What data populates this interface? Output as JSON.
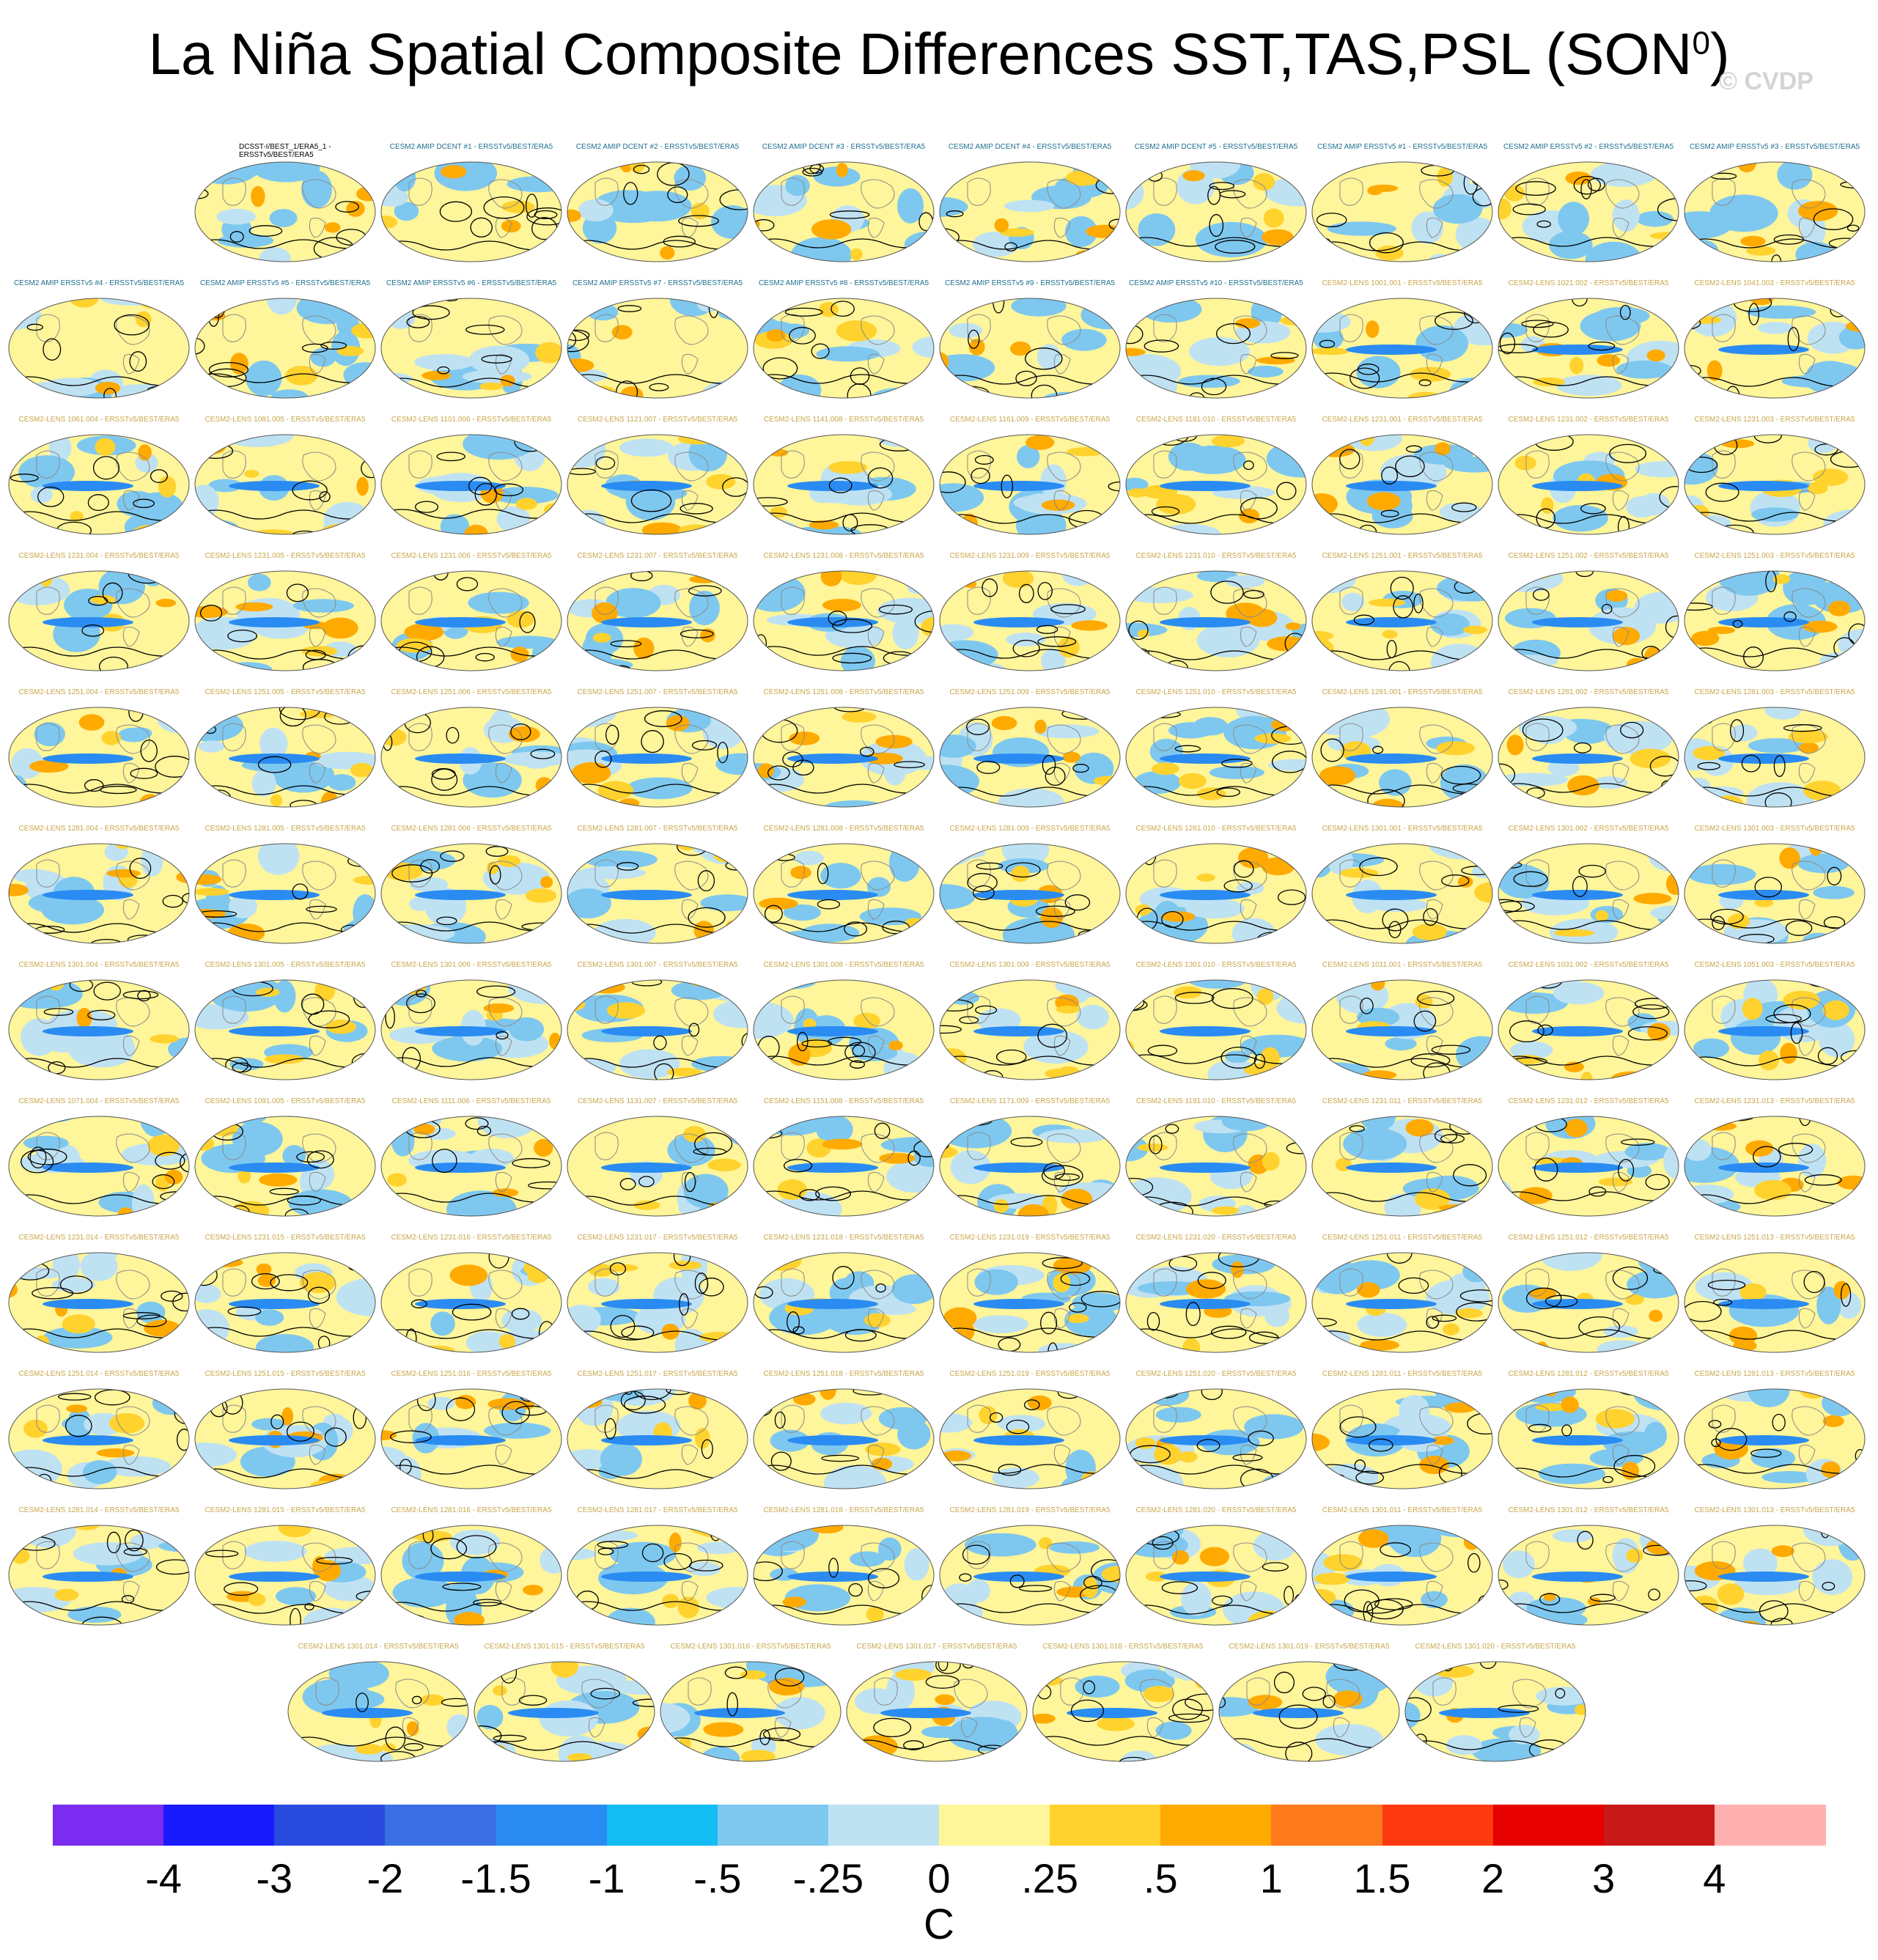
{
  "title": {
    "main": "La Niña Spatial Composite Differences SST,TAS,PSL (SON",
    "sup": "0",
    "close": ")"
  },
  "watermark": "© CVDP",
  "panel_rows": [
    {
      "count": 9,
      "offset": 1
    },
    {
      "count": 10,
      "offset": 0
    },
    {
      "count": 10,
      "offset": 0
    },
    {
      "count": 10,
      "offset": 0
    },
    {
      "count": 10,
      "offset": 0
    },
    {
      "count": 10,
      "offset": 0
    },
    {
      "count": 10,
      "offset": 0
    },
    {
      "count": 10,
      "offset": 0
    },
    {
      "count": 10,
      "offset": 0
    },
    {
      "count": 10,
      "offset": 0
    },
    {
      "count": 10,
      "offset": 0
    },
    {
      "count": 7,
      "offset": 1.5
    }
  ],
  "panel_labels": [
    "DCSST-I/BEST_1/ERA5_1 - ERSSTv5/BEST/ERA5",
    "CESM2 AMIP DCENT #1 - ERSSTv5/BEST/ERA5",
    "CESM2 AMIP DCENT #2 - ERSSTv5/BEST/ERA5",
    "CESM2 AMIP DCENT #3 - ERSSTv5/BEST/ERA5",
    "CESM2 AMIP DCENT #4 - ERSSTv5/BEST/ERA5",
    "CESM2 AMIP DCENT #5 - ERSSTv5/BEST/ERA5",
    "CESM2 AMIP ERSSTv5 #1 - ERSSTv5/BEST/ERA5",
    "CESM2 AMIP ERSSTv5 #2 - ERSSTv5/BEST/ERA5",
    "CESM2 AMIP ERSSTv5 #3 - ERSSTv5/BEST/ERA5",
    "CESM2 AMIP ERSSTv5 #4 - ERSSTv5/BEST/ERA5",
    "CESM2 AMIP ERSSTv5 #5 - ERSSTv5/BEST/ERA5",
    "CESM2 AMIP ERSSTv5 #6 - ERSSTv5/BEST/ERA5",
    "CESM2 AMIP ERSSTv5 #7 - ERSSTv5/BEST/ERA5",
    "CESM2 AMIP ERSSTv5 #8 - ERSSTv5/BEST/ERA5",
    "CESM2 AMIP ERSSTv5 #9 - ERSSTv5/BEST/ERA5",
    "CESM2 AMIP ERSSTv5 #10 - ERSSTv5/BEST/ERA5",
    "CESM2-LENS 1001.001 - ERSSTv5/BEST/ERA5",
    "CESM2-LENS 1021.002 - ERSSTv5/BEST/ERA5",
    "CESM2-LENS 1041.003 - ERSSTv5/BEST/ERA5",
    "CESM2-LENS 1061.004 - ERSSTv5/BEST/ERA5",
    "CESM2-LENS 1081.005 - ERSSTv5/BEST/ERA5",
    "CESM2-LENS 1101.006 - ERSSTv5/BEST/ERA5",
    "CESM2-LENS 1121.007 - ERSSTv5/BEST/ERA5",
    "CESM2-LENS 1141.008 - ERSSTv5/BEST/ERA5",
    "CESM2-LENS 1161.009 - ERSSTv5/BEST/ERA5",
    "CESM2-LENS 1181.010 - ERSSTv5/BEST/ERA5",
    "CESM2-LENS 1231.001 - ERSSTv5/BEST/ERA5",
    "CESM2-LENS 1231.002 - ERSSTv5/BEST/ERA5",
    "CESM2-LENS 1231.003 - ERSSTv5/BEST/ERA5",
    "CESM2-LENS 1231.004 - ERSSTv5/BEST/ERA5",
    "CESM2-LENS 1231.005 - ERSSTv5/BEST/ERA5",
    "CESM2-LENS 1231.006 - ERSSTv5/BEST/ERA5",
    "CESM2-LENS 1231.007 - ERSSTv5/BEST/ERA5",
    "CESM2-LENS 1231.008 - ERSSTv5/BEST/ERA5",
    "CESM2-LENS 1231.009 - ERSSTv5/BEST/ERA5",
    "CESM2-LENS 1231.010 - ERSSTv5/BEST/ERA5",
    "CESM2-LENS 1251.001 - ERSSTv5/BEST/ERA5",
    "CESM2-LENS 1251.002 - ERSSTv5/BEST/ERA5",
    "CESM2-LENS 1251.003 - ERSSTv5/BEST/ERA5",
    "CESM2-LENS 1251.004 - ERSSTv5/BEST/ERA5",
    "CESM2-LENS 1251.005 - ERSSTv5/BEST/ERA5",
    "CESM2-LENS 1251.006 - ERSSTv5/BEST/ERA5",
    "CESM2-LENS 1251.007 - ERSSTv5/BEST/ERA5",
    "CESM2-LENS 1251.008 - ERSSTv5/BEST/ERA5",
    "CESM2-LENS 1251.009 - ERSSTv5/BEST/ERA5",
    "CESM2-LENS 1251.010 - ERSSTv5/BEST/ERA5",
    "CESM2-LENS 1281.001 - ERSSTv5/BEST/ERA5",
    "CESM2-LENS 1281.002 - ERSSTv5/BEST/ERA5",
    "CESM2-LENS 1281.003 - ERSSTv5/BEST/ERA5",
    "CESM2-LENS 1281.004 - ERSSTv5/BEST/ERA5",
    "CESM2-LENS 1281.005 - ERSSTv5/BEST/ERA5",
    "CESM2-LENS 1281.006 - ERSSTv5/BEST/ERA5",
    "CESM2-LENS 1281.007 - ERSSTv5/BEST/ERA5",
    "CESM2-LENS 1281.008 - ERSSTv5/BEST/ERA5",
    "CESM2-LENS 1281.009 - ERSSTv5/BEST/ERA5",
    "CESM2-LENS 1281.010 - ERSSTv5/BEST/ERA5",
    "CESM2-LENS 1301.001 - ERSSTv5/BEST/ERA5",
    "CESM2-LENS 1301.002 - ERSSTv5/BEST/ERA5",
    "CESM2-LENS 1301.003 - ERSSTv5/BEST/ERA5",
    "CESM2-LENS 1301.004 - ERSSTv5/BEST/ERA5",
    "CESM2-LENS 1301.005 - ERSSTv5/BEST/ERA5",
    "CESM2-LENS 1301.006 - ERSSTv5/BEST/ERA5",
    "CESM2-LENS 1301.007 - ERSSTv5/BEST/ERA5",
    "CESM2-LENS 1301.008 - ERSSTv5/BEST/ERA5",
    "CESM2-LENS 1301.009 - ERSSTv5/BEST/ERA5",
    "CESM2-LENS 1301.010 - ERSSTv5/BEST/ERA5",
    "CESM2-LENS 1011.001 - ERSSTv5/BEST/ERA5",
    "CESM2-LENS 1031.002 - ERSSTv5/BEST/ERA5",
    "CESM2-LENS 1051.003 - ERSSTv5/BEST/ERA5",
    "CESM2-LENS 1071.004 - ERSSTv5/BEST/ERA5",
    "CESM2-LENS 1091.005 - ERSSTv5/BEST/ERA5",
    "CESM2-LENS 1111.006 - ERSSTv5/BEST/ERA5",
    "CESM2-LENS 1131.007 - ERSSTv5/BEST/ERA5",
    "CESM2-LENS 1151.008 - ERSSTv5/BEST/ERA5",
    "CESM2-LENS 1171.009 - ERSSTv5/BEST/ERA5",
    "CESM2-LENS 1191.010 - ERSSTv5/BEST/ERA5",
    "CESM2-LENS 1231.011 - ERSSTv5/BEST/ERA5",
    "CESM2-LENS 1231.012 - ERSSTv5/BEST/ERA5",
    "CESM2-LENS 1231.013 - ERSSTv5/BEST/ERA5",
    "CESM2-LENS 1231.014 - ERSSTv5/BEST/ERA5",
    "CESM2-LENS 1231.015 - ERSSTv5/BEST/ERA5",
    "CESM2-LENS 1231.016 - ERSSTv5/BEST/ERA5",
    "CESM2-LENS 1231.017 - ERSSTv5/BEST/ERA5",
    "CESM2-LENS 1231.018 - ERSSTv5/BEST/ERA5",
    "CESM2-LENS 1231.019 - ERSSTv5/BEST/ERA5",
    "CESM2-LENS 1231.020 - ERSSTv5/BEST/ERA5",
    "CESM2-LENS 1251.011 - ERSSTv5/BEST/ERA5",
    "CESM2-LENS 1251.012 - ERSSTv5/BEST/ERA5",
    "CESM2-LENS 1251.013 - ERSSTv5/BEST/ERA5",
    "CESM2-LENS 1251.014 - ERSSTv5/BEST/ERA5",
    "CESM2-LENS 1251.015 - ERSSTv5/BEST/ERA5",
    "CESM2-LENS 1251.016 - ERSSTv5/BEST/ERA5",
    "CESM2-LENS 1251.017 - ERSSTv5/BEST/ERA5",
    "CESM2-LENS 1251.018 - ERSSTv5/BEST/ERA5",
    "CESM2-LENS 1251.019 - ERSSTv5/BEST/ERA5",
    "CESM2-LENS 1251.020 - ERSSTv5/BEST/ERA5",
    "CESM2-LENS 1281.011 - ERSSTv5/BEST/ERA5",
    "CESM2-LENS 1281.012 - ERSSTv5/BEST/ERA5",
    "CESM2-LENS 1281.013 - ERSSTv5/BEST/ERA5",
    "CESM2-LENS 1281.014 - ERSSTv5/BEST/ERA5",
    "CESM2-LENS 1281.015 - ERSSTv5/BEST/ERA5",
    "CESM2-LENS 1281.016 - ERSSTv5/BEST/ERA5",
    "CESM2-LENS 1281.017 - ERSSTv5/BEST/ERA5",
    "CESM2-LENS 1281.018 - ERSSTv5/BEST/ERA5",
    "CESM2-LENS 1281.019 - ERSSTv5/BEST/ERA5",
    "CESM2-LENS 1281.020 - ERSSTv5/BEST/ERA5",
    "CESM2-LENS 1301.011 - ERSSTv5/BEST/ERA5",
    "CESM2-LENS 1301.012 - ERSSTv5/BEST/ERA5",
    "CESM2-LENS 1301.013 - ERSSTv5/BEST/ERA5",
    "CESM2-LENS 1301.014 - ERSSTv5/BEST/ERA5",
    "CESM2-LENS 1301.015 - ERSSTv5/BEST/ERA5",
    "CESM2-LENS 1301.016 - ERSSTv5/BEST/ERA5",
    "CESM2-LENS 1301.017 - ERSSTv5/BEST/ERA5",
    "CESM2-LENS 1301.018 - ERSSTv5/BEST/ERA5",
    "CESM2-LENS 1301.019 - ERSSTv5/BEST/ERA5",
    "CESM2-LENS 1301.020 - ERSSTv5/BEST/ERA5"
  ],
  "label_colors": {
    "obs": "#000000",
    "amip": "#1f6f8f",
    "lens": "#c9a64a"
  },
  "colorbar": {
    "colors": [
      "#7a2df0",
      "#1a1aff",
      "#2a4be0",
      "#3a6fe6",
      "#2a8cf2",
      "#12bdf2",
      "#7ec8f0",
      "#bfe2f3",
      "#fff59a",
      "#ffd22e",
      "#ffaa00",
      "#ff7a1c",
      "#ff3a10",
      "#e60000",
      "#c81818",
      "#ffb0b0"
    ],
    "tick_labels": [
      "-4",
      "-3",
      "-2",
      "-1.5",
      "-1",
      "-.5",
      "-.25",
      "0",
      ".25",
      ".5",
      "1",
      "1.5",
      "2",
      "3",
      "4"
    ],
    "units": "C"
  }
}
